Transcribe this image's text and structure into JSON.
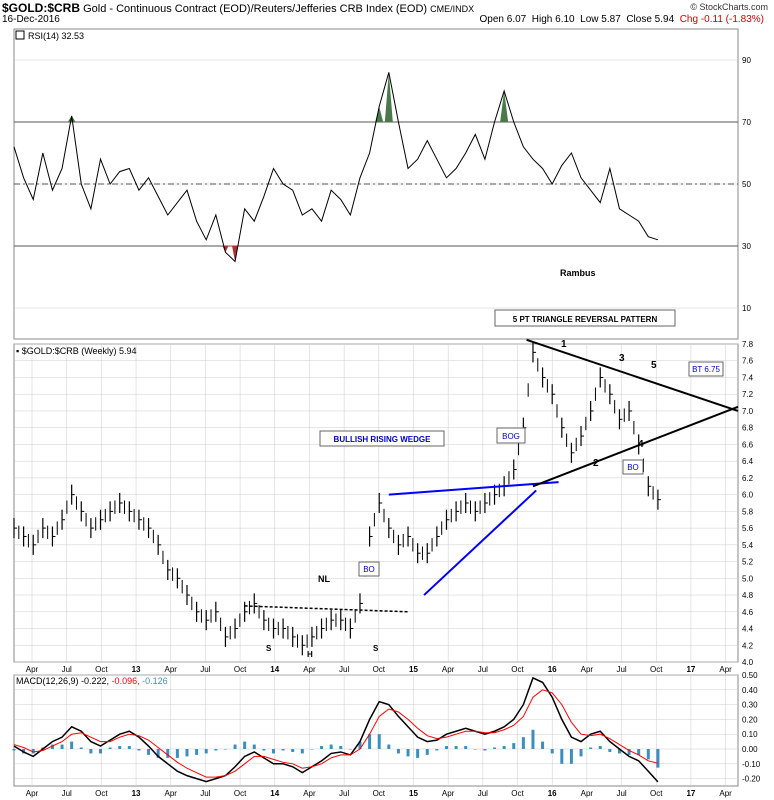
{
  "header": {
    "symbol": "$GOLD:$CRB",
    "description": "Gold - Continuous Contract (EOD)/Reuters/Jefferies CRB Index (EOD)",
    "exchange": "CME/INDX",
    "date": "16-Dec-2016",
    "open": "Open 6.07",
    "high": "High 6.10",
    "low": "Low 5.87",
    "close": "Close 5.94",
    "chg": "Chg -0.11 (-1.83%)",
    "brand": "© StockCharts.com"
  },
  "colors": {
    "price": "#000000",
    "rsi_overbought_fill": "#4a7a4a",
    "rsi_oversold_fill": "#b03030",
    "wedge_line": "#0000ff",
    "macd_signal": "#ff0000",
    "macd_hist": "#3a8fc0",
    "grid": "#cccccc"
  },
  "chart_data": [
    {
      "type": "line",
      "name": "rsi",
      "label": "RSI(14) 32.53",
      "ylim": [
        0,
        100
      ],
      "yticks": [
        "90",
        "70",
        "50",
        "30",
        "10"
      ],
      "hlines": [
        70,
        50,
        30
      ],
      "x": [
        0,
        3,
        6,
        9,
        12,
        15,
        18,
        21,
        24,
        27,
        30,
        33,
        36,
        39,
        42,
        45,
        48,
        51,
        54,
        57,
        60,
        63,
        66,
        69,
        72,
        75,
        78,
        81,
        84,
        87,
        90,
        93,
        96,
        99,
        102,
        105,
        108,
        111,
        114,
        117,
        120,
        123,
        126,
        129,
        132,
        135,
        138,
        141,
        144,
        147,
        150,
        153,
        156,
        159,
        162,
        165,
        168,
        171,
        174,
        177,
        180,
        183,
        186,
        189,
        192,
        195,
        198,
        201
      ],
      "values": [
        62,
        52,
        45,
        60,
        48,
        55,
        72,
        50,
        42,
        58,
        50,
        54,
        55,
        48,
        52,
        46,
        40,
        44,
        48,
        38,
        32,
        40,
        28,
        25,
        42,
        38,
        46,
        55,
        50,
        48,
        40,
        42,
        38,
        48,
        45,
        40,
        52,
        60,
        75,
        86,
        70,
        55,
        58,
        64,
        58,
        52,
        55,
        60,
        66,
        58,
        70,
        80,
        70,
        62,
        58,
        55,
        50,
        56,
        60,
        52,
        48,
        44,
        55,
        42,
        40,
        38,
        33,
        32
      ],
      "annotation": "Rambus"
    },
    {
      "type": "bar",
      "name": "price",
      "label": "$GOLD:$CRB (Weekly) 5.94",
      "ylim": [
        4.0,
        7.8
      ],
      "yticks": [
        "7.8",
        "7.6",
        "7.4",
        "7.2",
        "7.0",
        "6.8",
        "6.6",
        "6.4",
        "6.2",
        "6.0",
        "5.8",
        "5.6",
        "5.4",
        "5.2",
        "5.0",
        "4.8",
        "4.6",
        "4.4",
        "4.2",
        "4.0"
      ],
      "xticks": [
        "Apr",
        "Jul",
        "Oct",
        "13",
        "Apr",
        "Jul",
        "Oct",
        "14",
        "Apr",
        "Jul",
        "Oct",
        "15",
        "Apr",
        "Jul",
        "Oct",
        "16",
        "Apr",
        "Jul",
        "Oct",
        "17",
        "Apr"
      ],
      "x": [
        0,
        3,
        6,
        9,
        12,
        15,
        18,
        21,
        24,
        27,
        30,
        33,
        36,
        39,
        42,
        45,
        48,
        51,
        54,
        57,
        60,
        63,
        66,
        69,
        72,
        75,
        78,
        81,
        84,
        87,
        90,
        93,
        96,
        99,
        102,
        105,
        108,
        111,
        114,
        117,
        120,
        123,
        126,
        129,
        132,
        135,
        138,
        141,
        144,
        147,
        150,
        153,
        156,
        159,
        162,
        165,
        168,
        171,
        174,
        177,
        180,
        183,
        186,
        189,
        192,
        195,
        198,
        201
      ],
      "values": [
        5.6,
        5.5,
        5.4,
        5.6,
        5.5,
        5.7,
        6.0,
        5.8,
        5.6,
        5.7,
        5.8,
        5.9,
        5.8,
        5.7,
        5.6,
        5.4,
        5.1,
        5.0,
        4.8,
        4.6,
        4.5,
        4.6,
        4.3,
        4.4,
        4.6,
        4.7,
        4.5,
        4.4,
        4.4,
        4.3,
        4.2,
        4.3,
        4.4,
        4.5,
        4.5,
        4.4,
        4.7,
        5.5,
        5.9,
        5.6,
        5.4,
        5.5,
        5.3,
        5.3,
        5.5,
        5.7,
        5.8,
        5.9,
        5.8,
        5.9,
        6.0,
        6.1,
        6.3,
        6.8,
        7.7,
        7.4,
        7.2,
        6.8,
        6.5,
        6.7,
        7.0,
        7.4,
        7.2,
        6.9,
        7.0,
        6.6,
        6.1,
        5.94
      ],
      "annotations": [
        "5 PT TRIANGLE REVERSAL PATTERN",
        "BULLISH RISING WEDGE",
        "BOG",
        "BO",
        "BT 6.75",
        "BO",
        "NL",
        "S",
        "H",
        "S",
        "1",
        "2",
        "3",
        "4",
        "5"
      ]
    },
    {
      "type": "line",
      "name": "macd",
      "label": "MACD(12,26,9) -0.222, -0.096, -0.126",
      "label_parts": [
        "MACD(12,26,9)",
        "-0.222",
        "-0.096",
        "-0.126"
      ],
      "ylim": [
        -0.25,
        0.5
      ],
      "yticks": [
        "0.50",
        "0.40",
        "0.30",
        "0.20",
        "0.10",
        "0.00",
        "-0.10",
        "-0.20"
      ],
      "x": [
        0,
        3,
        6,
        9,
        12,
        15,
        18,
        21,
        24,
        27,
        30,
        33,
        36,
        39,
        42,
        45,
        48,
        51,
        54,
        57,
        60,
        63,
        66,
        69,
        72,
        75,
        78,
        81,
        84,
        87,
        90,
        93,
        96,
        99,
        102,
        105,
        108,
        111,
        114,
        117,
        120,
        123,
        126,
        129,
        132,
        135,
        138,
        141,
        144,
        147,
        150,
        153,
        156,
        159,
        162,
        165,
        168,
        171,
        174,
        177,
        180,
        183,
        186,
        189,
        192,
        195,
        198,
        201
      ],
      "series": [
        {
          "values": [
            0.02,
            -0.02,
            -0.05,
            0.0,
            0.05,
            0.08,
            0.15,
            0.12,
            0.05,
            0.02,
            0.06,
            0.1,
            0.12,
            0.08,
            0.02,
            -0.05,
            -0.1,
            -0.15,
            -0.18,
            -0.2,
            -0.22,
            -0.2,
            -0.18,
            -0.12,
            -0.05,
            -0.02,
            -0.06,
            -0.1,
            -0.1,
            -0.12,
            -0.16,
            -0.12,
            -0.08,
            -0.03,
            -0.02,
            -0.04,
            0.05,
            0.2,
            0.32,
            0.3,
            0.22,
            0.15,
            0.08,
            0.05,
            0.06,
            0.1,
            0.12,
            0.14,
            0.12,
            0.1,
            0.12,
            0.15,
            0.2,
            0.3,
            0.48,
            0.45,
            0.35,
            0.2,
            0.08,
            0.05,
            0.1,
            0.12,
            0.05,
            0.0,
            -0.05,
            -0.08,
            -0.15,
            -0.222
          ]
        },
        {
          "values": [
            0.03,
            0.01,
            -0.02,
            -0.01,
            0.02,
            0.05,
            0.1,
            0.11,
            0.08,
            0.05,
            0.05,
            0.08,
            0.1,
            0.09,
            0.06,
            0.01,
            -0.04,
            -0.09,
            -0.13,
            -0.16,
            -0.19,
            -0.19,
            -0.18,
            -0.15,
            -0.1,
            -0.05,
            -0.05,
            -0.07,
            -0.09,
            -0.1,
            -0.13,
            -0.12,
            -0.1,
            -0.06,
            -0.04,
            -0.04,
            0.0,
            0.1,
            0.22,
            0.27,
            0.25,
            0.2,
            0.14,
            0.09,
            0.07,
            0.08,
            0.1,
            0.12,
            0.12,
            0.11,
            0.11,
            0.13,
            0.16,
            0.22,
            0.35,
            0.4,
            0.38,
            0.3,
            0.18,
            0.1,
            0.09,
            0.1,
            0.07,
            0.03,
            -0.01,
            -0.04,
            -0.08,
            -0.096
          ]
        }
      ],
      "hist_values": [
        -0.01,
        -0.03,
        -0.03,
        0.01,
        0.03,
        0.03,
        0.05,
        0.01,
        -0.03,
        -0.03,
        0.01,
        0.02,
        0.02,
        -0.01,
        -0.04,
        -0.06,
        -0.06,
        -0.06,
        -0.05,
        -0.04,
        -0.03,
        -0.01,
        0.0,
        0.03,
        0.05,
        0.03,
        -0.01,
        -0.03,
        -0.01,
        -0.02,
        -0.03,
        0.0,
        0.02,
        0.03,
        0.02,
        0.0,
        0.05,
        0.1,
        0.1,
        0.03,
        -0.03,
        -0.05,
        -0.06,
        -0.04,
        -0.01,
        0.02,
        0.02,
        0.02,
        0.0,
        -0.01,
        0.01,
        0.02,
        0.04,
        0.08,
        0.13,
        0.05,
        -0.03,
        -0.1,
        -0.1,
        -0.05,
        0.01,
        0.02,
        -0.02,
        -0.03,
        -0.04,
        -0.04,
        -0.07,
        -0.126
      ],
      "xticks": [
        "Apr",
        "Jul",
        "Oct",
        "13",
        "Apr",
        "Jul",
        "Oct",
        "14",
        "Apr",
        "Jul",
        "Oct",
        "15",
        "Apr",
        "Jul",
        "Oct",
        "16",
        "Apr",
        "Jul",
        "Oct",
        "17",
        "Apr"
      ]
    }
  ]
}
